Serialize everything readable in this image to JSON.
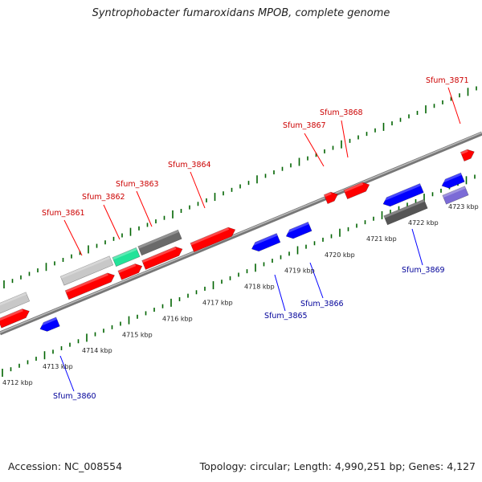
{
  "title": "Syntrophobacter fumaroxidans MPOB, complete genome",
  "accession": "Accession: NC_008554",
  "summary": "Topology: circular; Length: 4,990,251 bp; Genes: 4,127",
  "colors": {
    "forward_gene": "#ff0000",
    "reverse_gene": "#0000ff",
    "tick": "#006400",
    "backbone": "#888888",
    "forward_label": "#cc0000",
    "reverse_label": "#000099"
  },
  "scale_labels": [
    "4712 kbp",
    "4713 kbp",
    "4714 kbp",
    "4715 kbp",
    "4716 kbp",
    "4717 kbp",
    "4718 kbp",
    "4719 kbp",
    "4720 kbp",
    "4721 kbp",
    "4722 kbp",
    "4723 kbp"
  ],
  "gene_labels_forward": [
    "Sfum_3861",
    "Sfum_3862",
    "Sfum_3863",
    "Sfum_3864",
    "Sfum_3867",
    "Sfum_3868",
    "Sfum_3871"
  ],
  "gene_labels_reverse": [
    "Sfum_3860",
    "Sfum_3865",
    "Sfum_3866",
    "Sfum_3869"
  ]
}
